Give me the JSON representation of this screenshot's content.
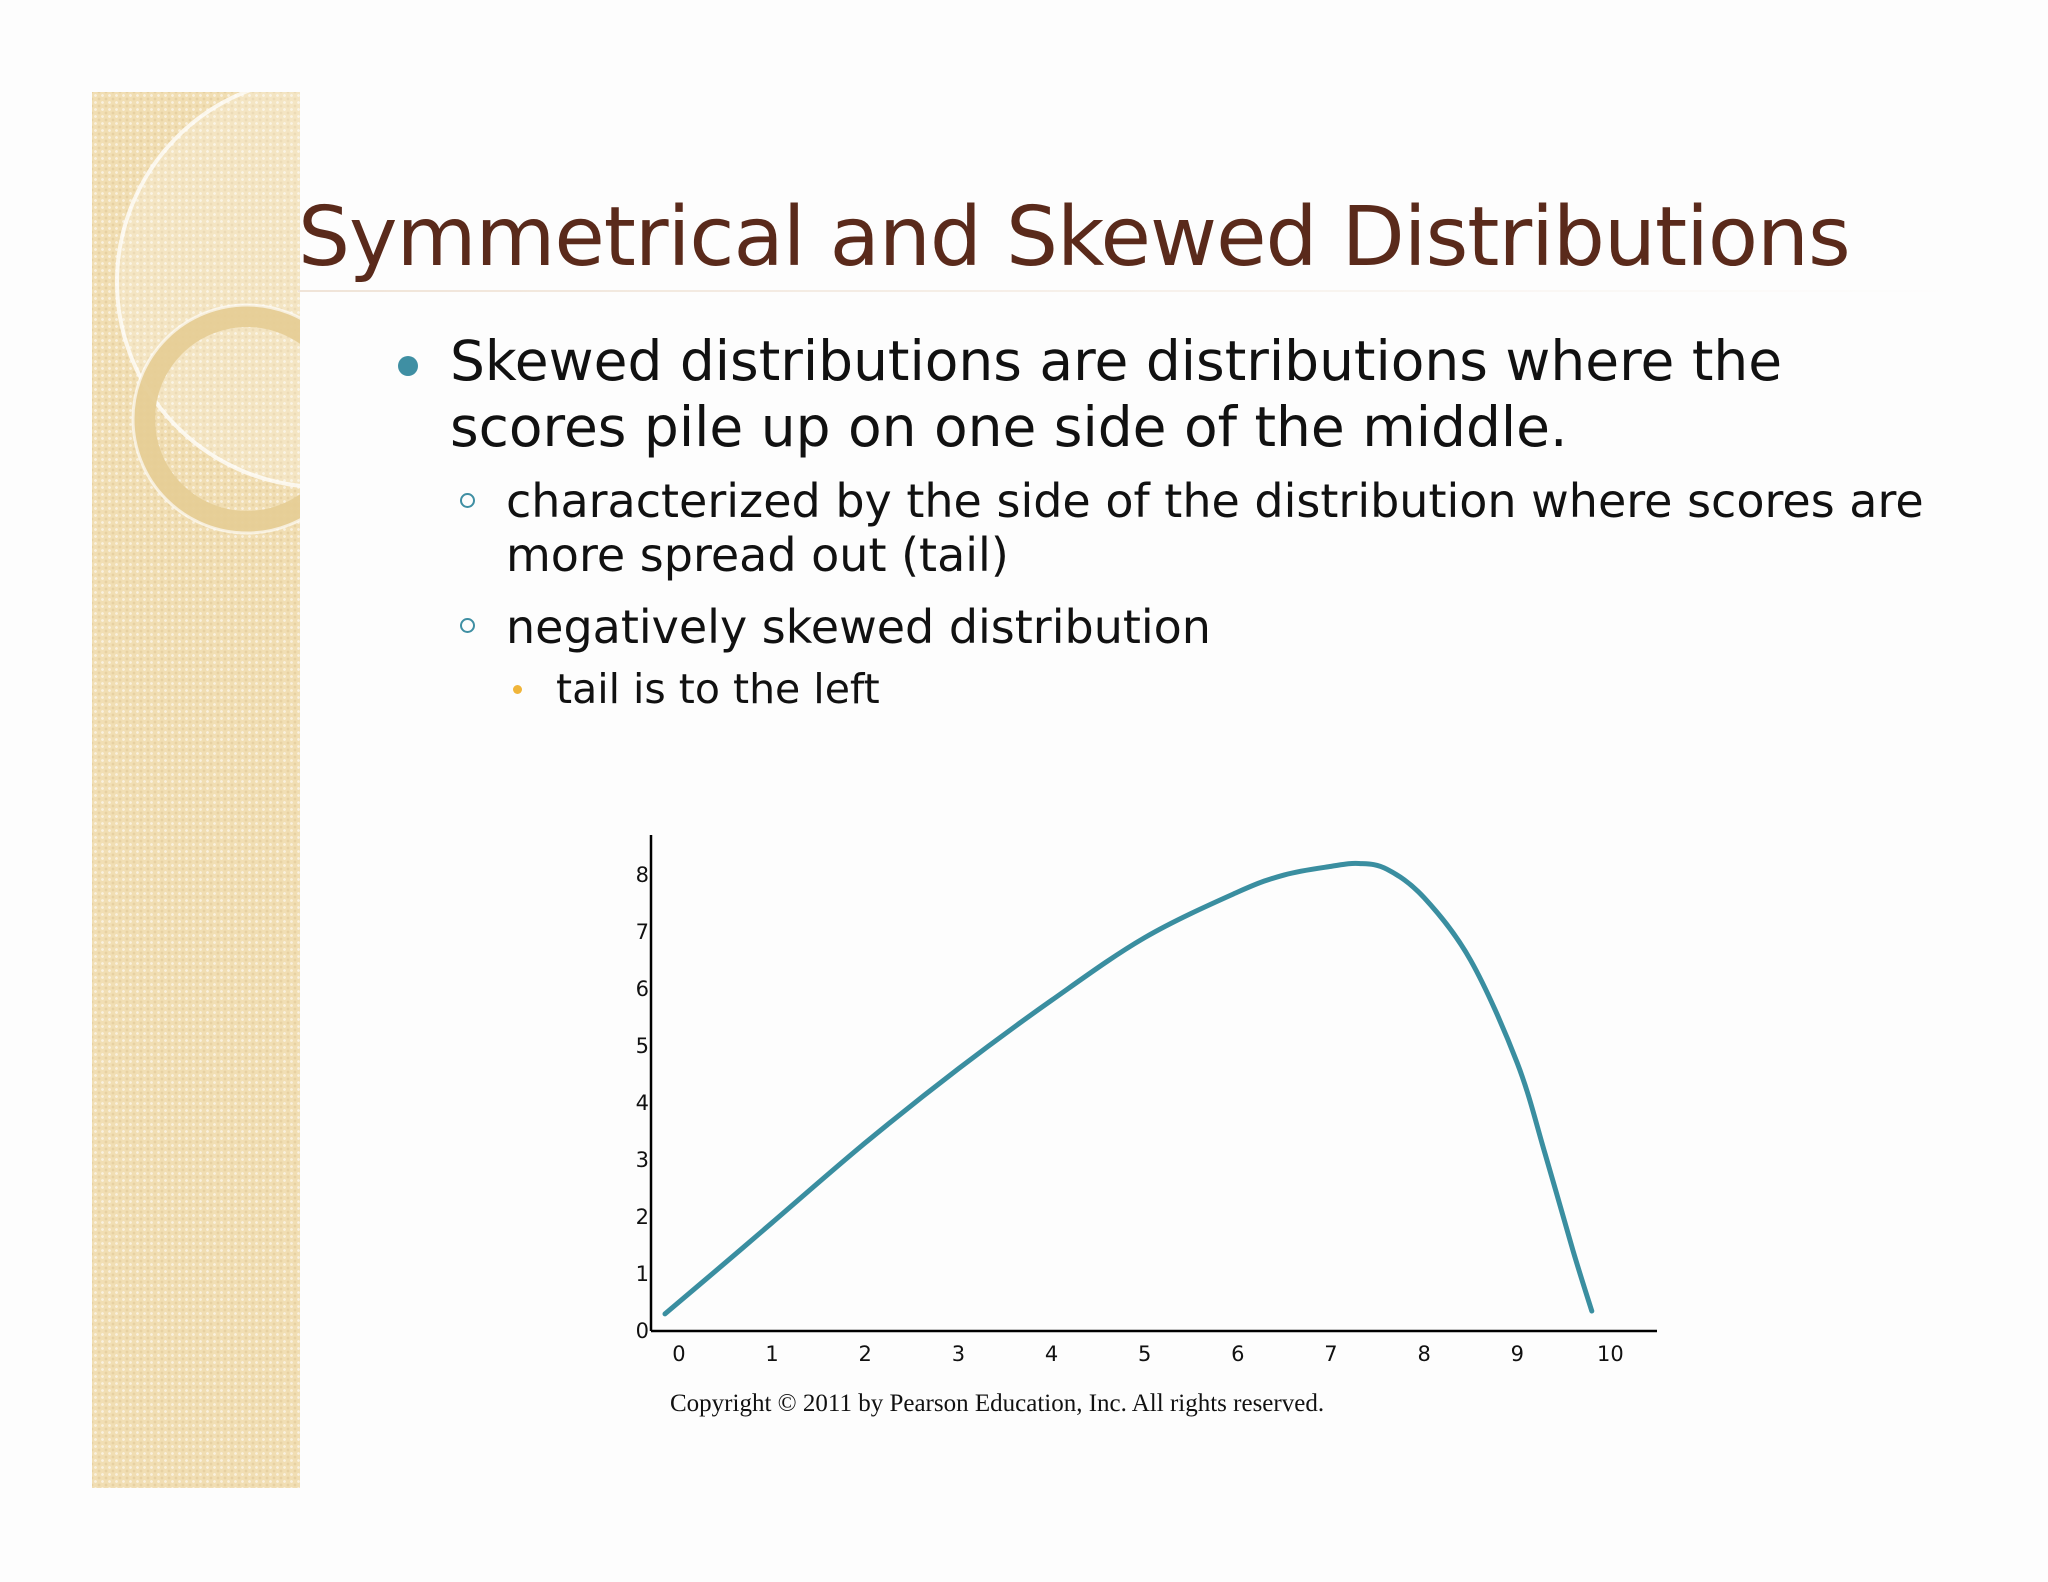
{
  "slide": {
    "title": "Symmetrical and Skewed Distributions",
    "bullets": {
      "main": "Skewed distributions are distributions where the scores pile up on one side of the middle.",
      "sub1": "characterized by the side of the distribution where scores are more spread out (tail)",
      "sub2": "negatively skewed distribution",
      "sub2_point": "tail is to the left"
    },
    "copyright": "Copyright © 2011 by Pearson Education, Inc. All rights reserved."
  },
  "colors": {
    "title": "#5a2a1b",
    "bullet": "#3f8fa3",
    "sub_bullet": "#f0b53a",
    "curve": "#3a8ea0",
    "band": "#f1deb3"
  },
  "chart_data": {
    "type": "line",
    "title": "",
    "xlabel": "",
    "ylabel": "",
    "xlim": [
      -0.3,
      10.5
    ],
    "ylim": [
      0,
      8.7
    ],
    "x_ticks": [
      "0",
      "1",
      "2",
      "3",
      "4",
      "5",
      "6",
      "7",
      "8",
      "9",
      "10"
    ],
    "y_ticks": [
      "0",
      "1",
      "2",
      "3",
      "4",
      "5",
      "6",
      "7",
      "8"
    ],
    "grid": false,
    "series": [
      {
        "name": "",
        "x": [
          -0.15,
          0.5,
          1,
          2,
          3,
          4,
          5,
          6,
          6.5,
          7,
          7.3,
          7.6,
          8,
          8.5,
          9,
          9.3,
          9.6,
          9.8
        ],
        "y": [
          0.3,
          1.2,
          1.9,
          3.3,
          4.6,
          5.8,
          6.9,
          7.7,
          8.0,
          8.15,
          8.2,
          8.1,
          7.6,
          6.5,
          4.7,
          3.1,
          1.4,
          0.35
        ]
      }
    ]
  }
}
